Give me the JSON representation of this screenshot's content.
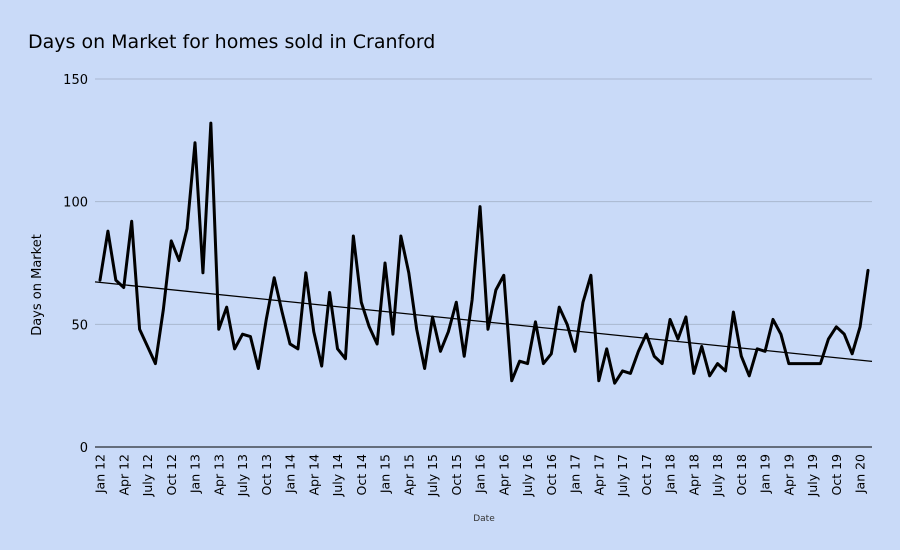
{
  "chart_data": {
    "type": "line",
    "title": "Days on Market for homes sold in Cranford",
    "xlabel": "Date",
    "ylabel": "Days on Market",
    "ylim": [
      0,
      150
    ],
    "yticks": [
      0,
      50,
      100,
      150
    ],
    "grid": true,
    "legend": "none",
    "x_tick_labels": [
      "Jan 12",
      "Apr 12",
      "July 12",
      "Oct 12",
      "Jan 13",
      "Apr 13",
      "July 13",
      "Oct 13",
      "Jan 14",
      "Apr 14",
      "July 14",
      "Oct 14",
      "Jan 15",
      "Apr 15",
      "July 15",
      "Oct 15",
      "Jan 16",
      "Apr 16",
      "July 16",
      "Oct 16",
      "Jan 17",
      "Apr 17",
      "July 17",
      "Oct 17",
      "Jan 18",
      "Apr 18",
      "July 18",
      "Oct 18",
      "Jan 19",
      "Apr 19",
      "July 19",
      "Oct 19",
      "Jan 20"
    ],
    "series": [
      {
        "name": "Days on Market",
        "values": [
          68,
          88,
          68,
          65,
          92,
          48,
          41,
          34,
          56,
          84,
          76,
          89,
          124,
          71,
          132,
          48,
          57,
          40,
          46,
          45,
          32,
          52,
          69,
          55,
          42,
          40,
          71,
          47,
          33,
          63,
          40,
          36,
          86,
          59,
          49,
          42,
          75,
          46,
          86,
          71,
          48,
          32,
          53,
          39,
          47,
          59,
          37,
          60,
          98,
          48,
          64,
          70,
          27,
          35,
          34,
          51,
          34,
          38,
          57,
          50,
          39,
          59,
          70,
          27,
          40,
          26,
          31,
          30,
          39,
          46,
          37,
          34,
          52,
          44,
          53,
          30,
          41,
          29,
          34,
          31,
          55,
          37,
          29,
          40,
          39,
          52,
          46,
          34,
          34,
          34,
          34,
          34,
          44,
          49,
          46,
          38,
          49,
          72
        ]
      },
      {
        "name": "Trend",
        "values": [
          67.3,
          34.9
        ]
      }
    ]
  }
}
